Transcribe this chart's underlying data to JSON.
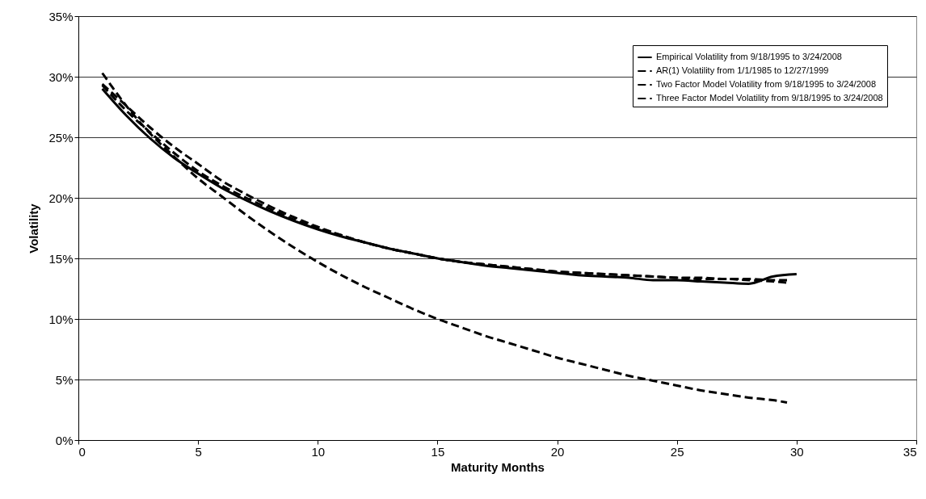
{
  "chart_data": {
    "type": "line",
    "xlabel": "Maturity Months",
    "ylabel": "Volatility",
    "xlim": [
      0,
      35
    ],
    "xticks": [
      0,
      5,
      10,
      15,
      20,
      25,
      30,
      35
    ],
    "ylim": [
      0,
      35
    ],
    "yticks": [
      {
        "value": 0,
        "label": "0%"
      },
      {
        "value": 5,
        "label": "5%"
      },
      {
        "value": 10,
        "label": "10%"
      },
      {
        "value": 15,
        "label": "15%"
      },
      {
        "value": 20,
        "label": "20%"
      },
      {
        "value": 25,
        "label": "25%"
      },
      {
        "value": 30,
        "label": "30%"
      },
      {
        "value": 35,
        "label": "35%"
      }
    ],
    "grid": "y",
    "legend": "top right",
    "marker": "none",
    "series": [
      {
        "name": "Empirical Volatility from 9/18/1995 to 3/24/2008",
        "color": "#000000",
        "line_style": "solid",
        "x": [
          1,
          2,
          3,
          4,
          5,
          6,
          7,
          8,
          9,
          10,
          11,
          12,
          13,
          14,
          15,
          16,
          17,
          18,
          19,
          20,
          21,
          22,
          23,
          24,
          25,
          26,
          27,
          28,
          29,
          30
        ],
        "values": [
          29.0,
          26.8,
          24.9,
          23.3,
          22.0,
          20.8,
          19.8,
          18.9,
          18.1,
          17.4,
          16.8,
          16.3,
          15.8,
          15.4,
          15.0,
          14.7,
          14.4,
          14.2,
          14.0,
          13.8,
          13.6,
          13.5,
          13.4,
          13.2,
          13.2,
          13.1,
          13.0,
          12.9,
          13.5,
          13.7
        ]
      },
      {
        "name": "AR(1) Volatility from 1/1/1985 to 12/27/1999",
        "color": "#000000",
        "line_style": "dashed",
        "x": [
          1,
          2,
          3,
          4,
          5,
          6,
          7,
          8,
          9,
          10,
          11,
          12,
          13,
          14,
          15,
          16,
          17,
          18,
          19,
          20,
          21,
          22,
          23,
          24,
          25,
          26,
          27,
          28,
          29,
          29.6
        ],
        "values": [
          30.3,
          27.6,
          25.3,
          23.4,
          21.6,
          20.1,
          18.6,
          17.2,
          15.9,
          14.7,
          13.6,
          12.6,
          11.7,
          10.8,
          10.0,
          9.3,
          8.6,
          8.0,
          7.4,
          6.8,
          6.3,
          5.8,
          5.3,
          4.9,
          4.5,
          4.1,
          3.8,
          3.5,
          3.3,
          3.1
        ]
      },
      {
        "name": "Two Factor Model Volatility from 9/18/1995 to 3/24/2008",
        "color": "#000000",
        "line_style": "dashed",
        "x": [
          1,
          2,
          3,
          4,
          5,
          6,
          7,
          8,
          9,
          10,
          11,
          12,
          13,
          14,
          15,
          16,
          17,
          18,
          19,
          20,
          21,
          22,
          23,
          24,
          25,
          26,
          27,
          28,
          29,
          29.6
        ],
        "values": [
          29.4,
          27.6,
          25.8,
          24.2,
          22.8,
          21.4,
          20.3,
          19.3,
          18.4,
          17.6,
          16.9,
          16.3,
          15.8,
          15.4,
          15.0,
          14.7,
          14.5,
          14.3,
          14.1,
          13.9,
          13.8,
          13.7,
          13.6,
          13.5,
          13.4,
          13.4,
          13.3,
          13.3,
          13.2,
          13.2
        ]
      },
      {
        "name": "Three Factor Model Volatility from 9/18/1995 to 3/24/2008",
        "color": "#000000",
        "line_style": "dashed",
        "x": [
          1,
          2,
          3,
          4,
          5,
          6,
          7,
          8,
          9,
          10,
          11,
          12,
          13,
          14,
          15,
          16,
          17,
          18,
          19,
          20,
          21,
          22,
          23,
          24,
          25,
          26,
          27,
          28,
          29,
          29.6
        ],
        "values": [
          29.3,
          27.2,
          25.4,
          23.7,
          22.2,
          21.0,
          20.0,
          19.1,
          18.2,
          17.5,
          16.9,
          16.3,
          15.8,
          15.4,
          15.0,
          14.7,
          14.5,
          14.3,
          14.1,
          13.9,
          13.8,
          13.7,
          13.6,
          13.5,
          13.4,
          13.3,
          13.3,
          13.2,
          13.1,
          13.0
        ]
      }
    ]
  }
}
